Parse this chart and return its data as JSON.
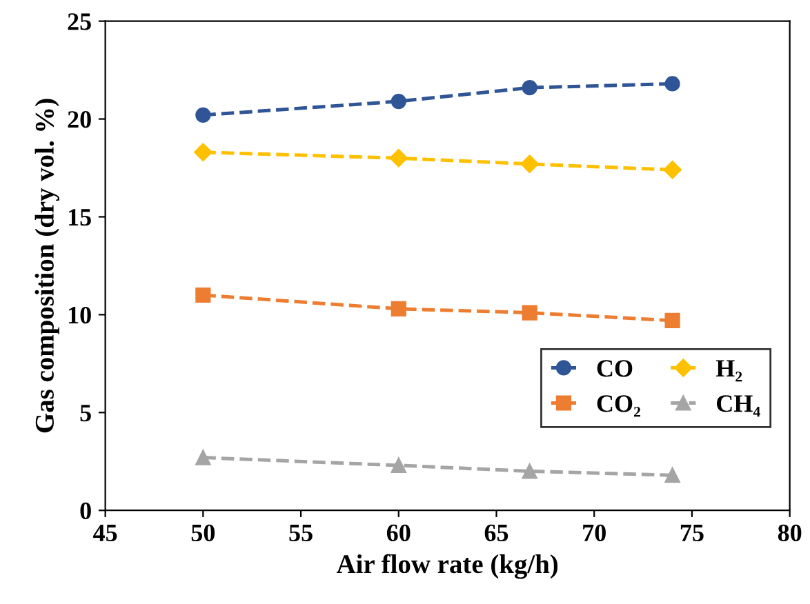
{
  "chart_data": {
    "type": "line",
    "xlabel": "Air flow rate (kg/h)",
    "ylabel": "Gas composition (dry vol. %)",
    "x": [
      50,
      60,
      66.7,
      74
    ],
    "series": [
      {
        "name": "CO",
        "color": "#2f5597",
        "values": [
          20.2,
          20.9,
          21.6,
          21.8
        ],
        "marker": "circle"
      },
      {
        "name": "H₂",
        "color": "#ffc000",
        "values": [
          18.3,
          18.0,
          17.7,
          17.4
        ],
        "marker": "diamond"
      },
      {
        "name": "CO₂",
        "color": "#ed7d31",
        "values": [
          11.0,
          10.3,
          10.1,
          9.7
        ],
        "marker": "square"
      },
      {
        "name": "CH₄",
        "color": "#a5a5a5",
        "values": [
          2.7,
          2.3,
          2.0,
          1.8
        ],
        "marker": "triangle"
      }
    ],
    "line_style": "dashed",
    "xlim": [
      45,
      80
    ],
    "xticks": [
      45,
      50,
      55,
      60,
      65,
      70,
      75,
      80
    ],
    "ylim": [
      0,
      25
    ],
    "yticks": [
      0,
      5,
      10,
      15,
      20,
      25
    ],
    "grid": false,
    "legend": "right"
  }
}
